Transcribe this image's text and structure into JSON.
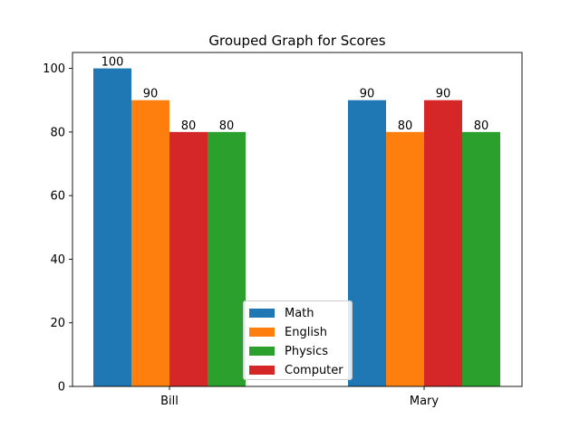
{
  "chart_data": {
    "type": "bar",
    "title": "Grouped Graph for Scores",
    "categories": [
      "Bill",
      "Mary"
    ],
    "ylim": [
      0,
      105
    ],
    "yticks": [
      0,
      20,
      40,
      60,
      80,
      100
    ],
    "grid": false,
    "legend_position": "lower-center",
    "series": [
      {
        "name": "Math",
        "color": "#1f77b4",
        "values": [
          100,
          90
        ]
      },
      {
        "name": "English",
        "color": "#ff7f0e",
        "values": [
          90,
          80
        ]
      },
      {
        "name": "Computer",
        "color": "#d62728",
        "values": [
          80,
          90
        ]
      },
      {
        "name": "Physics",
        "color": "#2ca02c",
        "values": [
          80,
          80
        ]
      }
    ],
    "legend_order": [
      "Math",
      "English",
      "Physics",
      "Computer"
    ],
    "data_labels": [
      [
        "100",
        "90",
        "80",
        "80"
      ],
      [
        "90",
        "80",
        "90",
        "80"
      ]
    ]
  }
}
